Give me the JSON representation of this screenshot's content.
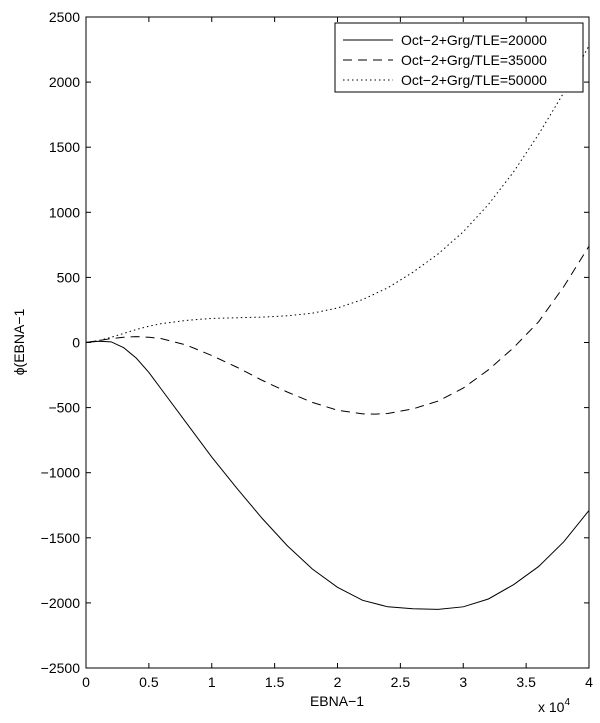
{
  "chart_data": {
    "type": "line",
    "xlabel": "EBNA−1",
    "ylabel": "ϕ(EBNA−1",
    "xlim": [
      0,
      40000
    ],
    "ylim": [
      -2500,
      2500
    ],
    "x_exponent_label": "x 10",
    "x_exponent_power": "4",
    "x_ticks": [
      0,
      5000,
      10000,
      15000,
      20000,
      25000,
      30000,
      35000,
      40000
    ],
    "x_tick_labels": [
      "0",
      "0.5",
      "1",
      "1.5",
      "2",
      "2.5",
      "3",
      "3.5",
      "4"
    ],
    "y_ticks": [
      -2500,
      -2000,
      -1500,
      -1000,
      -500,
      0,
      500,
      1000,
      1500,
      2000,
      2500
    ],
    "y_tick_labels": [
      "−2500",
      "−2000",
      "−1500",
      "−1000",
      "−500",
      "0",
      "500",
      "1000",
      "1500",
      "2000",
      "2500"
    ],
    "legend_position": "top-right",
    "grid": false,
    "series": [
      {
        "name": "Oct−2+Grg/TLE=20000",
        "style": "solid",
        "color": "#000000",
        "x": [
          0,
          1000,
          2000,
          3000,
          4000,
          5000,
          6000,
          8000,
          10000,
          12000,
          14000,
          16000,
          18000,
          20000,
          22000,
          24000,
          26000,
          28000,
          30000,
          32000,
          34000,
          36000,
          38000,
          40000
        ],
        "y": [
          0,
          10,
          5,
          -40,
          -120,
          -230,
          -360,
          -620,
          -880,
          -1120,
          -1350,
          -1560,
          -1740,
          -1880,
          -1980,
          -2030,
          -2045,
          -2050,
          -2030,
          -1970,
          -1860,
          -1720,
          -1530,
          -1290
        ]
      },
      {
        "name": "Oct−2+Grg/TLE=35000",
        "style": "dashed",
        "color": "#000000",
        "x": [
          0,
          1000,
          2000,
          3000,
          4000,
          5000,
          6000,
          8000,
          10000,
          12000,
          14000,
          16000,
          18000,
          20000,
          22000,
          23000,
          24000,
          26000,
          28000,
          30000,
          32000,
          34000,
          36000,
          38000,
          40000
        ],
        "y": [
          0,
          15,
          30,
          40,
          45,
          40,
          30,
          -20,
          -100,
          -190,
          -290,
          -380,
          -460,
          -520,
          -548,
          -550,
          -545,
          -510,
          -450,
          -350,
          -210,
          -40,
          160,
          430,
          740
        ]
      },
      {
        "name": "Oct−2+Grg/TLE=50000",
        "style": "dotted",
        "color": "#000000",
        "x": [
          0,
          1000,
          2000,
          3000,
          4000,
          5000,
          6000,
          8000,
          10000,
          12000,
          14000,
          16000,
          18000,
          20000,
          22000,
          24000,
          26000,
          28000,
          30000,
          32000,
          34000,
          36000,
          38000,
          40000
        ],
        "y": [
          0,
          15,
          40,
          70,
          100,
          125,
          145,
          170,
          185,
          190,
          195,
          205,
          225,
          265,
          330,
          420,
          540,
          680,
          850,
          1060,
          1310,
          1600,
          1920,
          2280
        ]
      }
    ]
  }
}
